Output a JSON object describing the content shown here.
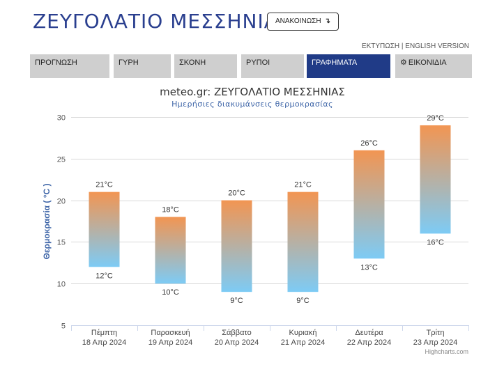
{
  "header": {
    "title": "ΖΕΥΓΟΛΑΤΙΟ ΜΕΣΣΗΝΙΑΣ",
    "announce_label": "ΑΝΑΚΟΙΝΩΣΗ",
    "announce_icon": "↴",
    "print_link": "ΕΚΤΥΠΩΣΗ",
    "link_separator": "|",
    "english_link": "ENGLISH VERSION"
  },
  "tabs": [
    {
      "label": "ΠΡΟΓΝΩΣΗ",
      "active": false
    },
    {
      "label": "ΓΥΡΗ",
      "active": false
    },
    {
      "label": "ΣΚΟΝΗ",
      "active": false
    },
    {
      "label": "ΡΥΠΟΙ",
      "active": false
    },
    {
      "label": "ΓΡΑΦΗΜΑΤΑ",
      "active": true
    },
    {
      "label": "ΕΙΚΟΝΙΔΙΑ",
      "active": false,
      "icon": "gear-icon"
    }
  ],
  "chart_data": {
    "type": "bar",
    "title": "meteo.gr: ΖΕΥΓΟΛΑΤΙΟ ΜΕΣΣΗΝΙΑΣ",
    "subtitle": "Ημερήσιες διακυμάνσεις θερμοκρασίας",
    "ylabel": "Θερμοκρασία ( °C )",
    "ylim": [
      5,
      30
    ],
    "yticks": [
      "5",
      "10",
      "15",
      "20",
      "25",
      "30"
    ],
    "categories": [
      {
        "day": "Πέμπτη",
        "date": "18 Απρ 2024"
      },
      {
        "day": "Παρασκευή",
        "date": "19 Απρ 2024"
      },
      {
        "day": "Σάββατο",
        "date": "20 Απρ 2024"
      },
      {
        "day": "Κυριακή",
        "date": "21 Απρ 2024"
      },
      {
        "day": "Δευτέρα",
        "date": "22 Απρ 2024"
      },
      {
        "day": "Τρίτη",
        "date": "23 Απρ 2024"
      }
    ],
    "low": [
      12,
      10,
      9,
      9,
      13,
      16
    ],
    "high": [
      21,
      18,
      20,
      21,
      26,
      29
    ],
    "low_labels": [
      "12°C",
      "10°C",
      "9°C",
      "9°C",
      "13°C",
      "16°C"
    ],
    "high_labels": [
      "21°C",
      "18°C",
      "20°C",
      "21°C",
      "26°C",
      "29°C"
    ],
    "colors": {
      "high": "#f29552",
      "low": "#7dcbf5",
      "grid": "#d8d8d8"
    },
    "credit": "Highcharts.com"
  }
}
